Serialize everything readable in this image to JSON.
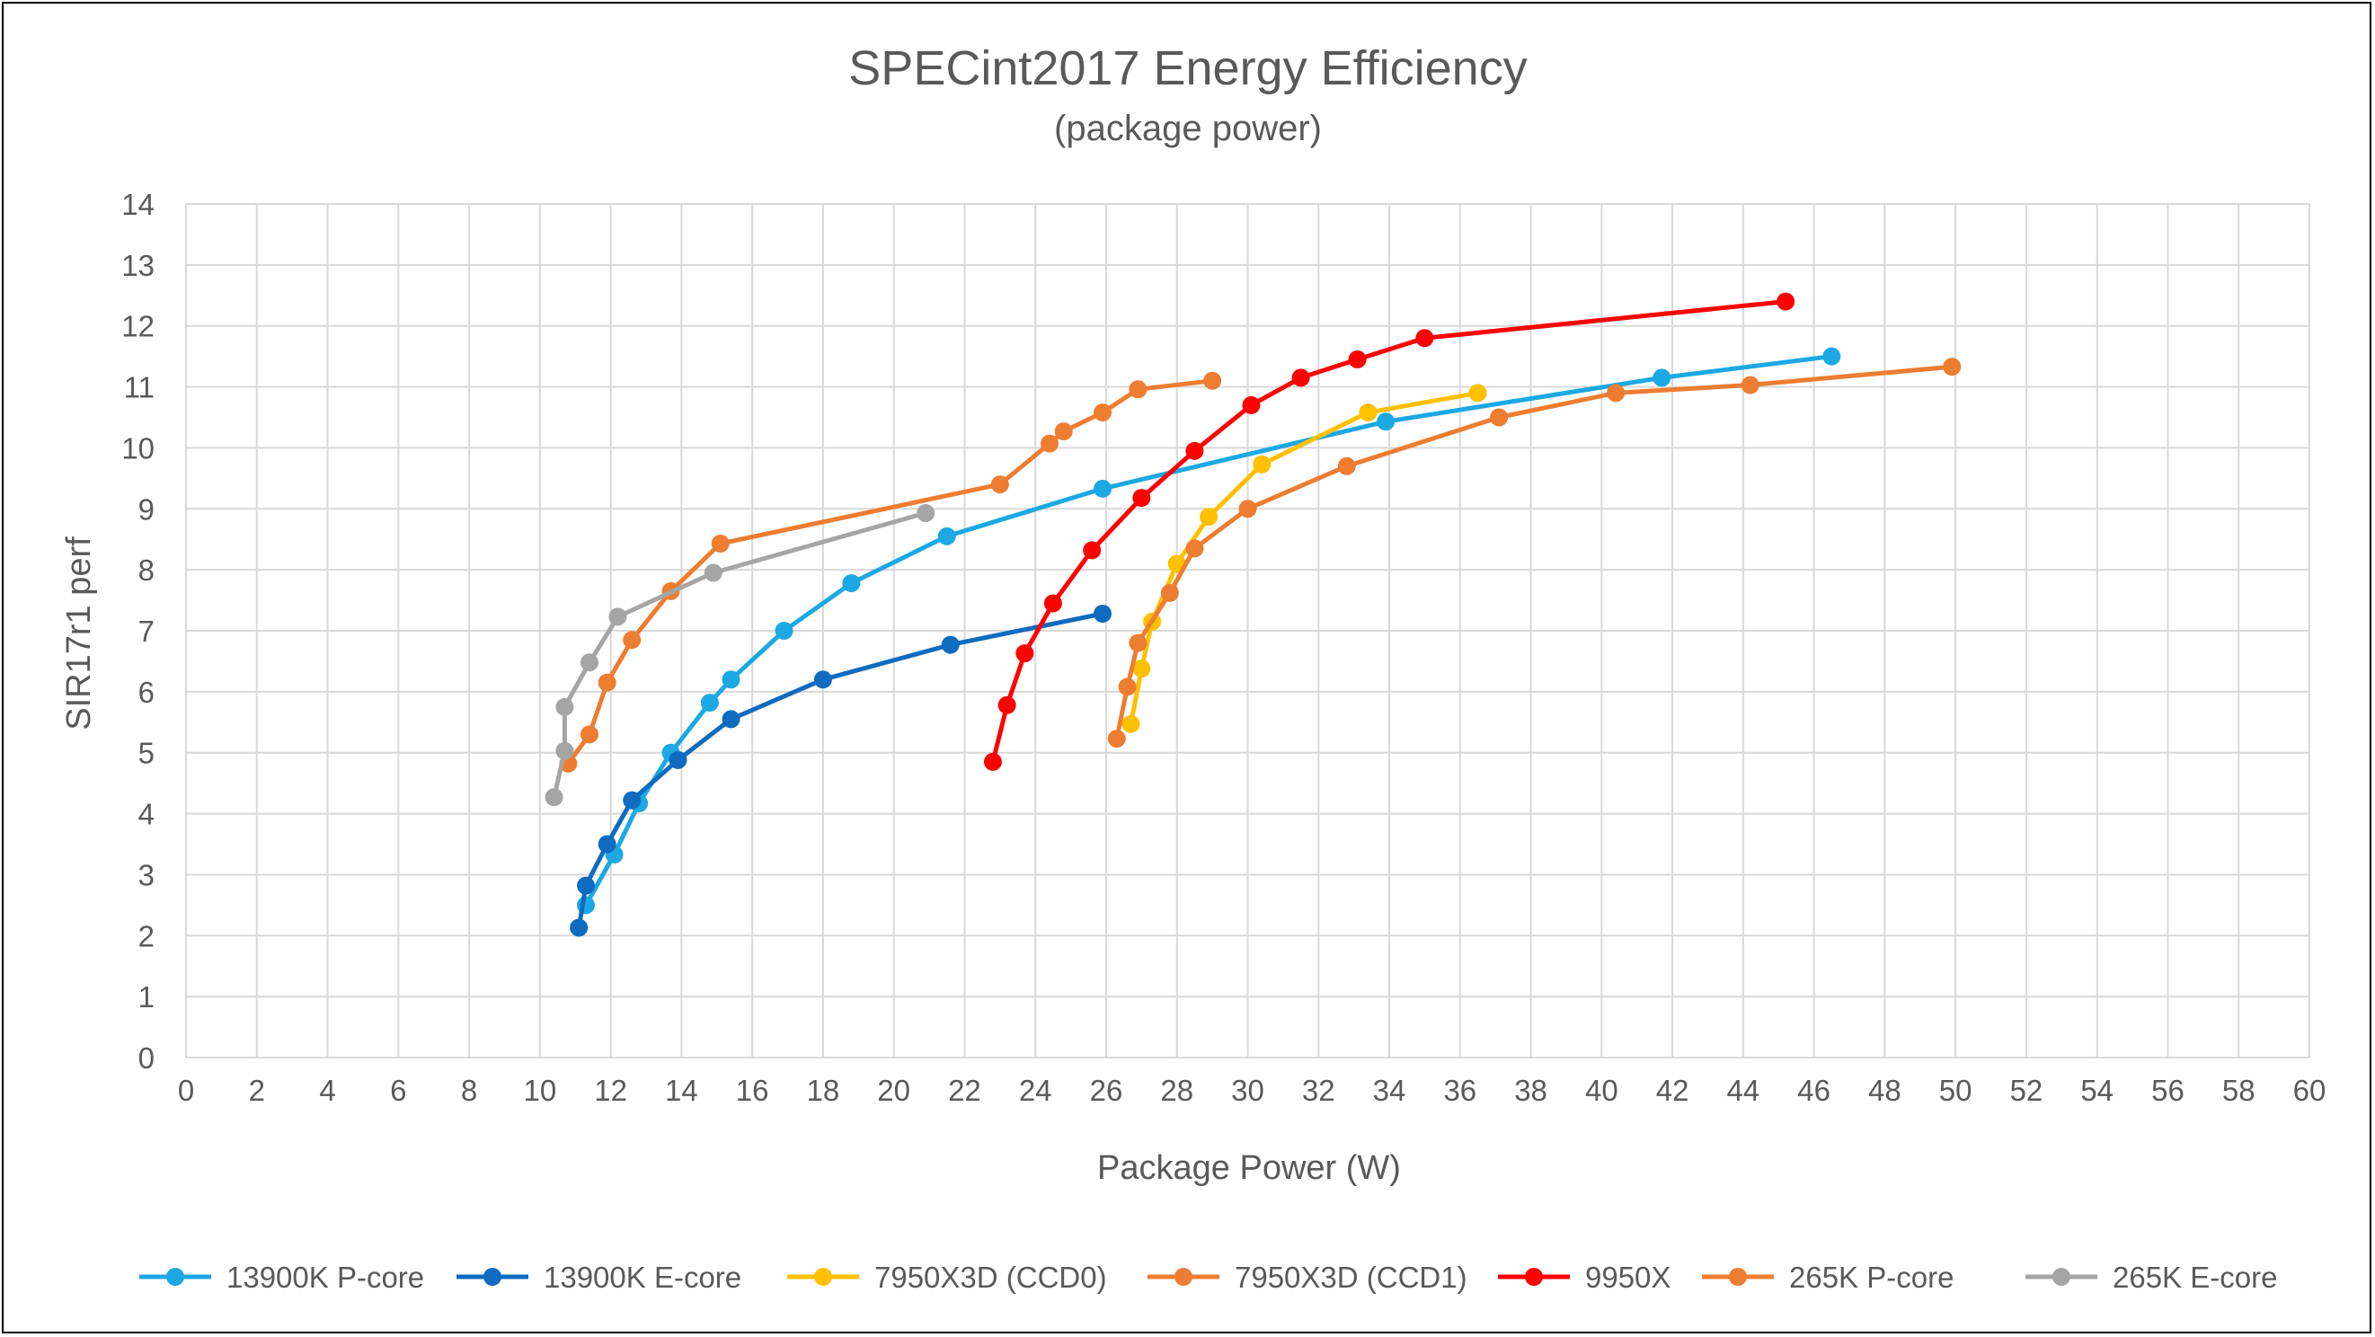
{
  "chart_data": {
    "type": "line",
    "title": "SPECint2017 Energy Efficiency",
    "subtitle": "(package power)",
    "xlabel": "Package Power (W)",
    "ylabel": "SIR17r1 perf",
    "xlim": [
      0,
      60
    ],
    "ylim": [
      0,
      14
    ],
    "x_ticks": [
      "0",
      "2",
      "4",
      "6",
      "8",
      "10",
      "12",
      "14",
      "16",
      "18",
      "20",
      "22",
      "24",
      "26",
      "28",
      "30",
      "32",
      "34",
      "36",
      "38",
      "40",
      "42",
      "44",
      "46",
      "48",
      "50",
      "52",
      "54",
      "56",
      "58",
      "60"
    ],
    "y_ticks": [
      "0",
      "1",
      "2",
      "3",
      "4",
      "5",
      "6",
      "7",
      "8",
      "9",
      "10",
      "11",
      "12",
      "13",
      "14"
    ],
    "grid": true,
    "legend_position": "bottom",
    "series": [
      {
        "name": "13900K P-core",
        "color": "#1CA8E3",
        "x": [
          11.3,
          12.1,
          12.8,
          13.7,
          14.8,
          15.4,
          16.9,
          18.8,
          21.5,
          25.9,
          33.9,
          41.7,
          46.5
        ],
        "y": [
          2.5,
          3.33,
          4.17,
          5.0,
          5.82,
          6.2,
          7.0,
          7.78,
          8.55,
          9.33,
          10.43,
          11.15,
          11.5
        ]
      },
      {
        "name": "13900K E-core",
        "color": "#0E6BBF",
        "x": [
          11.1,
          11.3,
          11.9,
          12.6,
          13.9,
          15.4,
          18.0,
          21.6,
          25.9
        ],
        "y": [
          2.13,
          2.82,
          3.5,
          4.22,
          4.88,
          5.55,
          6.2,
          6.77,
          7.28
        ]
      },
      {
        "name": "7950X3D (CCD0)",
        "color": "#FFC000",
        "x": [
          26.7,
          27.0,
          27.3,
          28.0,
          28.9,
          30.4,
          33.4,
          36.5
        ],
        "y": [
          5.47,
          6.38,
          7.15,
          8.1,
          8.87,
          9.73,
          10.58,
          10.9
        ]
      },
      {
        "name": "7950X3D (CCD1)",
        "color": "#ED7D31",
        "x": [
          26.3,
          26.6,
          26.9,
          27.8,
          28.5,
          30.0,
          32.8,
          37.1,
          40.4,
          44.2,
          49.9
        ],
        "y": [
          5.23,
          6.08,
          6.8,
          7.62,
          8.35,
          9.0,
          9.7,
          10.5,
          10.9,
          11.03,
          11.33
        ]
      },
      {
        "name": "9950X",
        "color": "#FF0000",
        "x": [
          22.8,
          23.2,
          23.7,
          24.5,
          25.6,
          27.0,
          28.5,
          30.1,
          31.5,
          33.1,
          35.0,
          45.2
        ],
        "y": [
          4.85,
          5.78,
          6.63,
          7.45,
          8.32,
          9.18,
          9.95,
          10.7,
          11.15,
          11.45,
          11.8,
          12.4
        ]
      },
      {
        "name": "265K P-core",
        "color": "#ED7D31",
        "x": [
          10.8,
          11.4,
          11.9,
          12.6,
          13.7,
          15.1,
          23.0,
          24.4,
          24.8,
          25.9,
          26.9,
          29.0
        ],
        "y": [
          4.82,
          5.3,
          6.15,
          6.85,
          7.65,
          8.43,
          9.4,
          10.07,
          10.27,
          10.58,
          10.96,
          11.1
        ]
      },
      {
        "name": "265K E-core",
        "color": "#A5A5A5",
        "x": [
          10.4,
          10.7,
          10.7,
          11.4,
          12.2,
          14.9,
          20.9
        ],
        "y": [
          4.27,
          5.03,
          5.75,
          6.48,
          7.23,
          7.95,
          8.93
        ]
      }
    ]
  }
}
